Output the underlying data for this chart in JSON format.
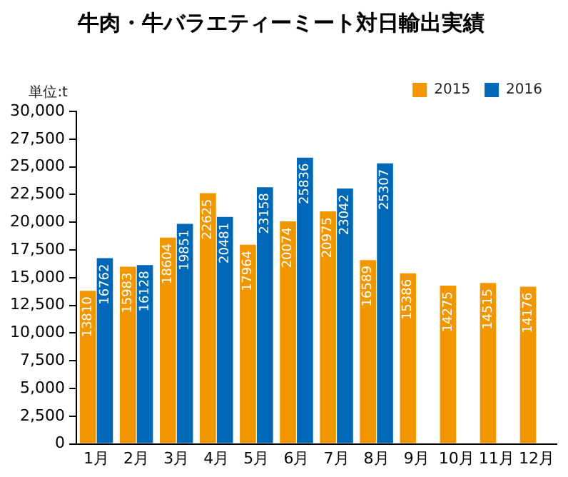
{
  "chart_data": {
    "type": "bar",
    "title": "牛肉・牛バラエティーミート対日輸出実績",
    "ylabel": "単位:t",
    "categories": [
      "1月",
      "2月",
      "3月",
      "4月",
      "5月",
      "6月",
      "7月",
      "8月",
      "9月",
      "10月",
      "11月",
      "12月"
    ],
    "series": [
      {
        "name": "2015",
        "color": "#f29600",
        "values": [
          13810,
          15983,
          18604,
          22625,
          17964,
          20074,
          20975,
          16589,
          15386,
          14275,
          14515,
          14176
        ]
      },
      {
        "name": "2016",
        "color": "#0068b7",
        "values": [
          16762,
          16128,
          19851,
          20481,
          23158,
          25836,
          23042,
          25307,
          null,
          null,
          null,
          null
        ]
      }
    ],
    "ylim": [
      0,
      30000
    ],
    "yticks": [
      {
        "value": 0,
        "label": "0"
      },
      {
        "value": 2500,
        "label": "2,500"
      },
      {
        "value": 5000,
        "label": "5,000"
      },
      {
        "value": 7500,
        "label": "7,500"
      },
      {
        "value": 10000,
        "label": "10,000"
      },
      {
        "value": 12500,
        "label": "12,500"
      },
      {
        "value": 15000,
        "label": "15,000"
      },
      {
        "value": 17500,
        "label": "17,500"
      },
      {
        "value": 20000,
        "label": "20,000"
      },
      {
        "value": 22500,
        "label": "22,500"
      },
      {
        "value": 25000,
        "label": "25,000"
      },
      {
        "value": 27500,
        "label": "27,500"
      },
      {
        "value": 30000,
        "label": "30,000"
      }
    ],
    "grid": false,
    "legend": "top right",
    "data_labels": true
  }
}
